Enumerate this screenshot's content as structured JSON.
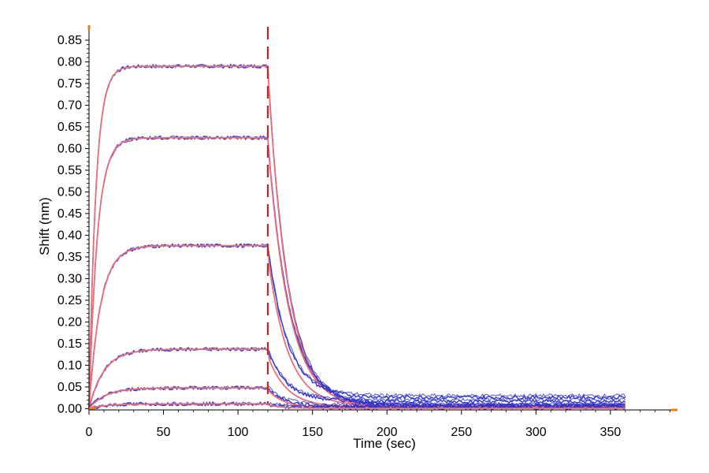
{
  "chart_data": {
    "type": "line",
    "title": "",
    "xlabel": "Time (sec)",
    "ylabel": "Shift (nm)",
    "xlim": [
      0,
      395
    ],
    "ylim": [
      -0.003,
      0.87
    ],
    "x_ticks": [
      0,
      50,
      100,
      150,
      200,
      250,
      300,
      350
    ],
    "x_tick_labels": [
      "0",
      "50",
      "100",
      "150",
      "200",
      "250",
      "300",
      "350"
    ],
    "y_ticks": [
      0.0,
      0.05,
      0.1,
      0.15,
      0.2,
      0.25,
      0.3,
      0.35,
      0.4,
      0.45,
      0.5,
      0.55,
      0.6,
      0.65,
      0.7,
      0.75,
      0.8,
      0.85
    ],
    "y_tick_labels": [
      "0.00",
      "0.05",
      "0.10",
      "0.15",
      "0.20",
      "0.25",
      "0.30",
      "0.35",
      "0.40",
      "0.45",
      "0.50",
      "0.55",
      "0.60",
      "0.65",
      "0.70",
      "0.75",
      "0.80",
      "0.85"
    ],
    "grid": false,
    "legend": "none",
    "association_end_marker": {
      "x": 120,
      "style": "dashed",
      "color": "#c0282d"
    },
    "axis_marker_color": "#e8820c",
    "measured_color": "#2b2fc9",
    "fit_color": "#e8707a",
    "curves": [
      {
        "plateau": 0.79,
        "kon": 0.22,
        "koff": 0.075,
        "baseline": 0.007
      },
      {
        "plateau": 0.625,
        "kon": 0.18,
        "koff": 0.07,
        "baseline": 0.008
      },
      {
        "plateau": 0.376,
        "kon": 0.13,
        "koff": 0.075,
        "baseline": 0.027
      },
      {
        "plateau": 0.137,
        "kon": 0.1,
        "koff": 0.08,
        "baseline": 0.018
      },
      {
        "plateau": 0.048,
        "kon": 0.09,
        "koff": 0.09,
        "baseline": 0.006
      },
      {
        "plateau": 0.011,
        "kon": 0.09,
        "koff": 0.1,
        "baseline": 0.003
      }
    ],
    "assoc_end": 120,
    "dissoc_end": 360
  }
}
